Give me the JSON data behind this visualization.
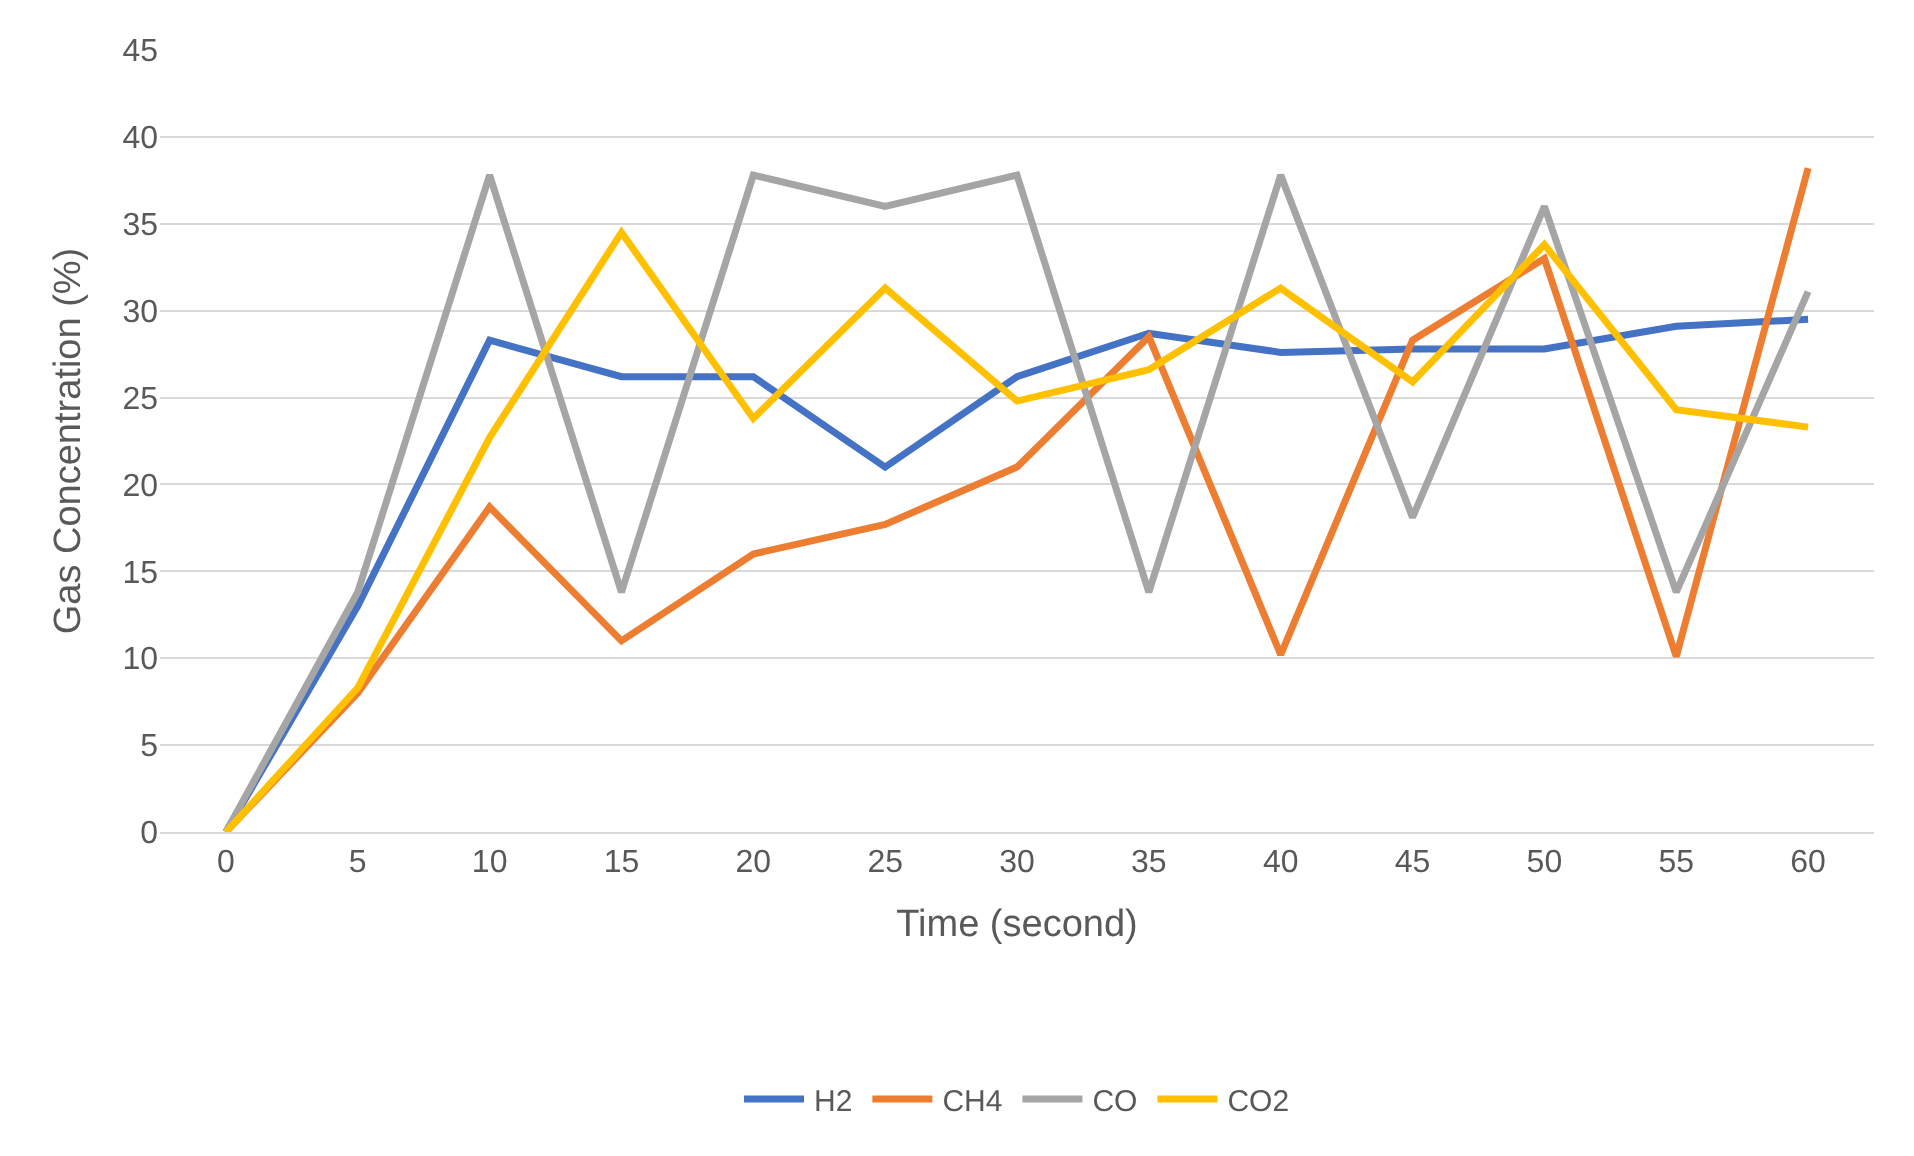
{
  "chart_data": {
    "type": "line",
    "xlabel": "Time (second)",
    "ylabel": "Gas Concentration (%)",
    "categories": [
      "0",
      "5",
      "10",
      "15",
      "20",
      "25",
      "30",
      "35",
      "40",
      "45",
      "50",
      "55",
      "60"
    ],
    "series": [
      {
        "name": "H2",
        "color": "#4472c4",
        "values": [
          0,
          13,
          28.3,
          26.2,
          26.2,
          21,
          26.2,
          28.7,
          27.6,
          27.8,
          27.8,
          29.1,
          29.5
        ]
      },
      {
        "name": "CH4",
        "color": "#ed7d31",
        "values": [
          0,
          8,
          18.7,
          11,
          16,
          17.7,
          21,
          28.5,
          10.2,
          28.3,
          33,
          10.1,
          38.2
        ]
      },
      {
        "name": "CO",
        "color": "#a5a5a5",
        "values": [
          0,
          13.8,
          37.8,
          13.8,
          37.8,
          36,
          37.8,
          13.8,
          37.8,
          18.1,
          36,
          13.8,
          31.1
        ]
      },
      {
        "name": "CO2",
        "color": "#ffc000",
        "values": [
          0,
          8.3,
          22.7,
          34.5,
          23.8,
          31.3,
          24.8,
          26.6,
          31.3,
          25.9,
          33.8,
          24.3,
          23.3
        ]
      }
    ],
    "ylim": [
      0,
      45
    ],
    "yticks": [
      0,
      5,
      10,
      15,
      20,
      25,
      30,
      35,
      40,
      45
    ],
    "grid": "y",
    "legend": "bottom",
    "marker": "none",
    "line_style": "solid"
  }
}
